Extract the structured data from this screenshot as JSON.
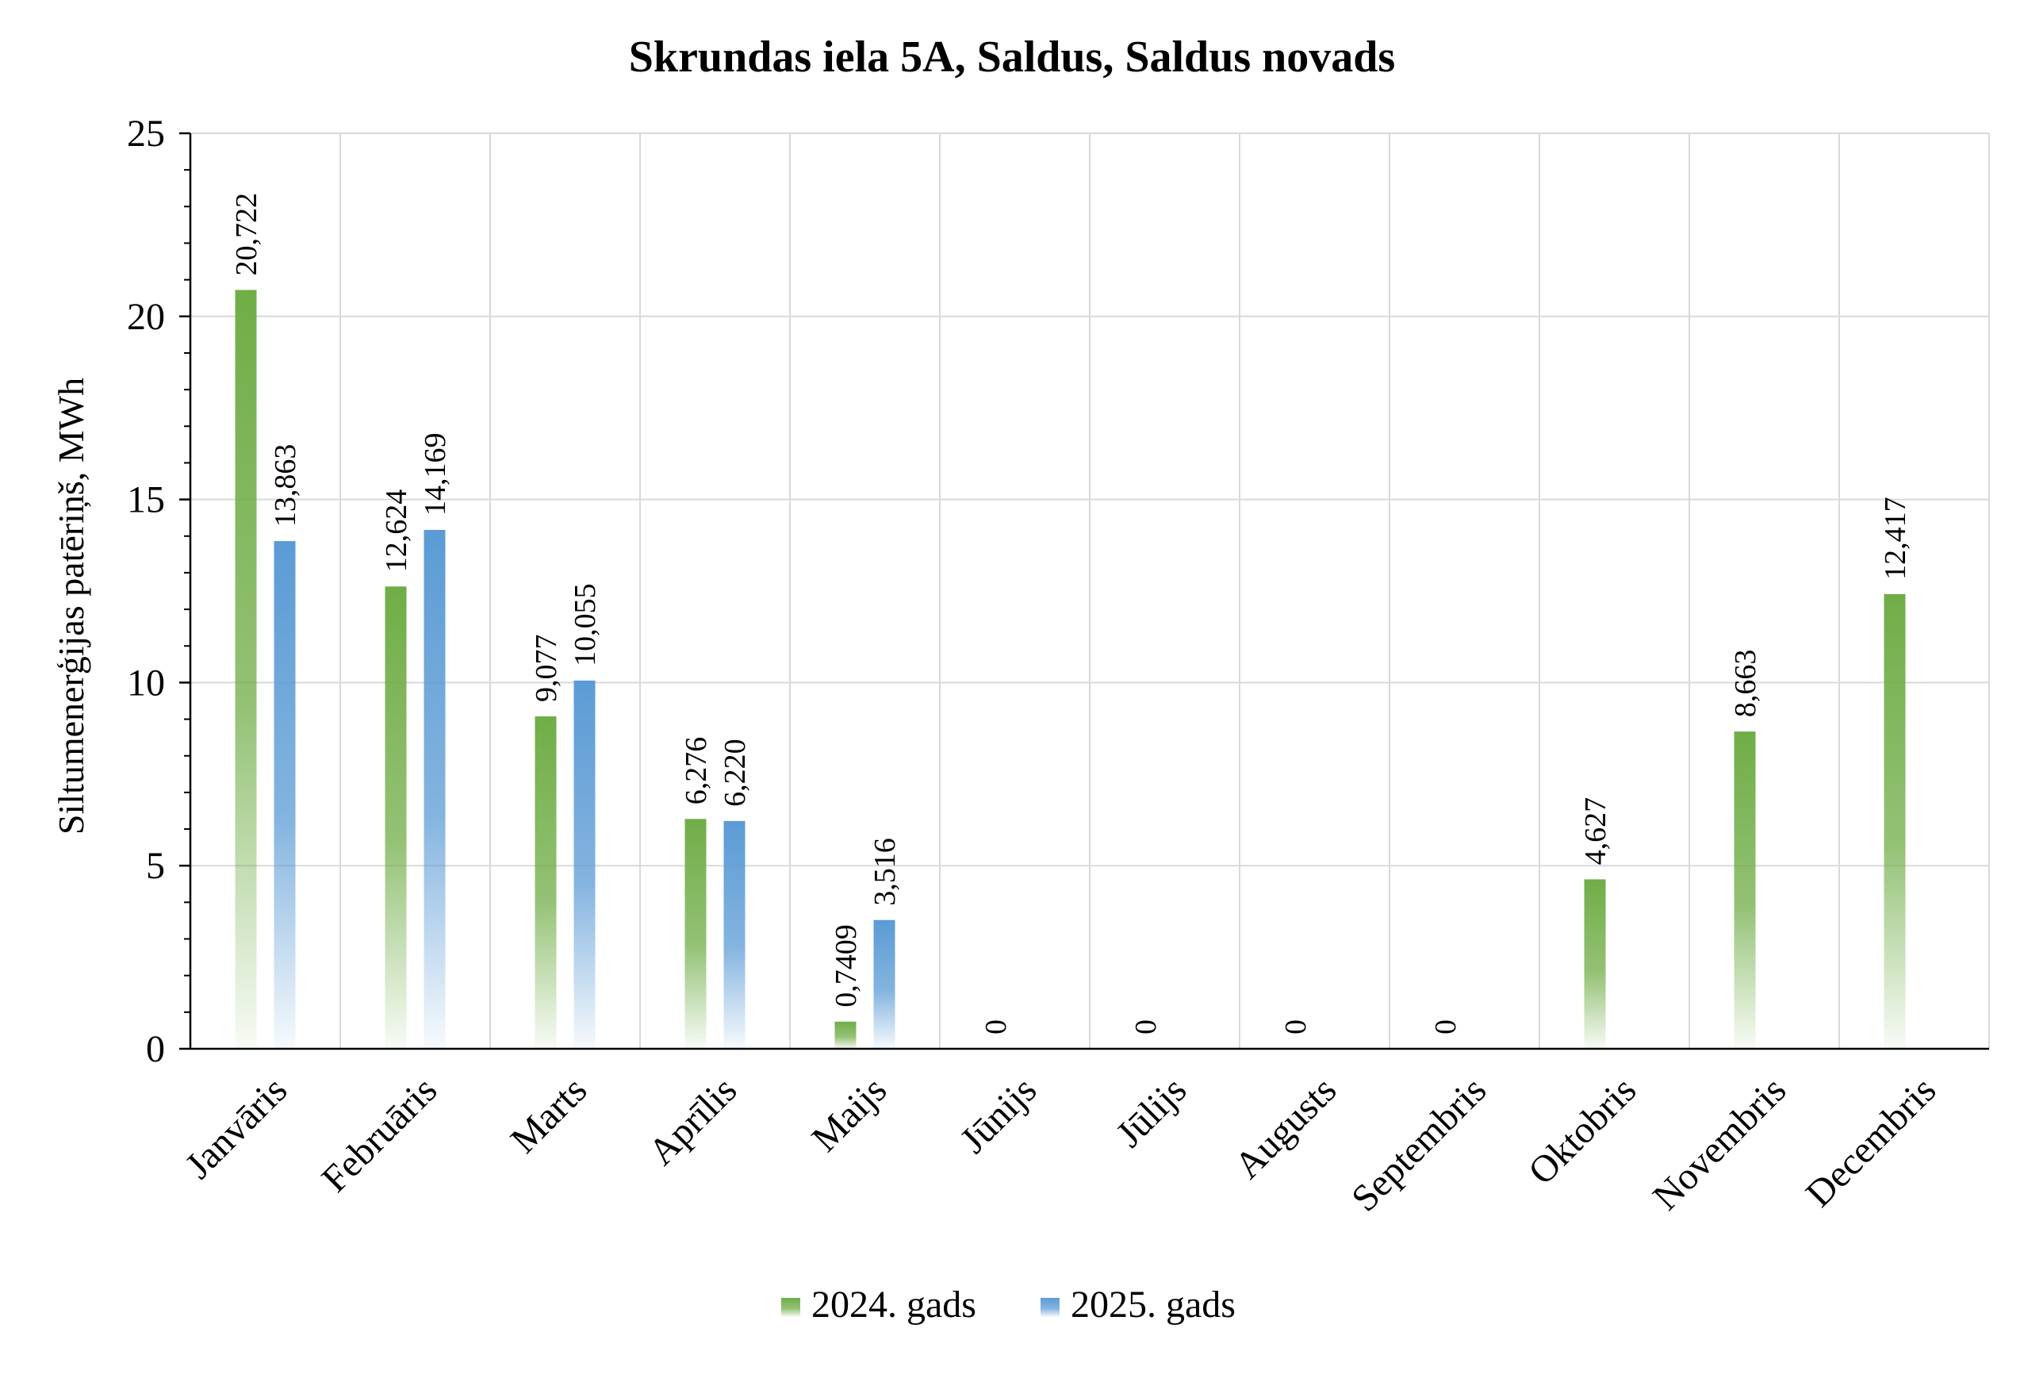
{
  "chart_data": {
    "type": "bar",
    "title": "Skrundas iela 5A, Saldus, Saldus novads",
    "ylabel": "Siltumenerģijas patēriņš, MWh",
    "xlabel": "",
    "ylim": [
      0,
      25
    ],
    "yticks": [
      "0",
      "5",
      "10",
      "15",
      "20",
      "25"
    ],
    "ytick_values": [
      0,
      5,
      10,
      15,
      20,
      25
    ],
    "grid": true,
    "legend_position": "bottom",
    "categories": [
      "Janvāris",
      "Februāris",
      "Marts",
      "Aprīlis",
      "Maijs",
      "Jūnijs",
      "Jūlijs",
      "Augusts",
      "Septembris",
      "Oktobris",
      "Novembris",
      "Decembris"
    ],
    "series": [
      {
        "name": "2024. gads",
        "color": "#70ad47",
        "values": [
          20.722,
          12.624,
          9.077,
          6.276,
          0.7409,
          0,
          0,
          0,
          0,
          4.627,
          8.663,
          12.417
        ],
        "labels": [
          "20,722",
          "12,624",
          "9,077",
          "6,276",
          "0,7409",
          "0",
          "0",
          "0",
          "0",
          "4,627",
          "8,663",
          "12,417"
        ]
      },
      {
        "name": "2025. gads",
        "color": "#5b9bd5",
        "values": [
          13.863,
          14.169,
          10.055,
          6.22,
          3.516,
          null,
          null,
          null,
          null,
          null,
          null,
          null
        ],
        "labels": [
          "13,863",
          "14,169",
          "10,055",
          "6,220",
          "3,516",
          "",
          "",
          "",
          "",
          "",
          "",
          ""
        ]
      }
    ]
  }
}
